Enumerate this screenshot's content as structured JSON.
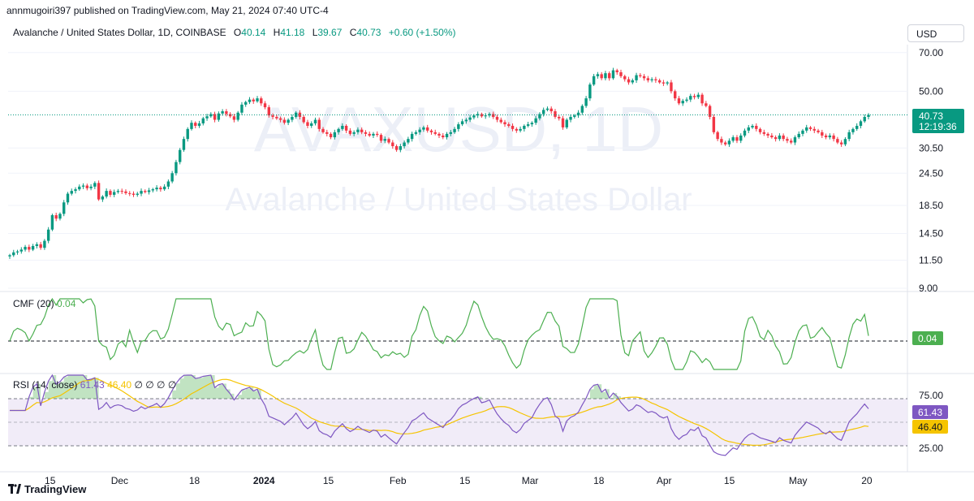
{
  "header": {
    "publisher_line": "annmugoiri397 published on TradingView.com, May 21, 2024 07:40 UTC-4"
  },
  "legend": {
    "symbol": "Avalanche / United States Dollar, 1D, COINBASE",
    "o_label": "O",
    "o": "40.14",
    "h_label": "H",
    "h": "41.18",
    "l_label": "L",
    "l": "39.67",
    "c_label": "C",
    "c": "40.73",
    "change": "+0.60 (+1.50%)"
  },
  "currency_button": "USD",
  "watermark": {
    "ticker": "AVAXUSD, 1D",
    "name": "Avalanche / United States Dollar"
  },
  "price_axis": [
    "70.00",
    "50.00",
    "30.50",
    "24.50",
    "18.50",
    "14.50",
    "11.50",
    "9.00"
  ],
  "last_price_badge": {
    "price": "40.73",
    "countdown": "12:19:36"
  },
  "cmf": {
    "legend_name": "CMF (20)",
    "legend_value": "0.04",
    "badge": "0.04"
  },
  "rsi": {
    "legend_name": "RSI (14, close)",
    "legend_value": "61.43",
    "legend_ma": "46.40",
    "legend_extra": "∅ ∅ ∅ ∅",
    "axis_top": "75.00",
    "axis_bottom": "25.00",
    "badge_rsi": "61.43",
    "badge_ma": "46.40"
  },
  "time_axis": [
    "15",
    "Dec",
    "18",
    "2024",
    "15",
    "Feb",
    "15",
    "Mar",
    "18",
    "Apr",
    "15",
    "May",
    "20"
  ],
  "footer": {
    "brand": "TradingView"
  },
  "colors": {
    "up": "#089981",
    "down": "#f23645",
    "cmf": "#4caf50",
    "rsi": "#7e57c2",
    "rsi_ma": "#f5c400",
    "rsi_band": "#ede7f6"
  },
  "chart_data": {
    "type": "candlestick",
    "title": "Avalanche / United States Dollar, 1D, COINBASE",
    "y_scale": "log",
    "ylim": [
      9,
      75
    ],
    "closes": [
      12.0,
      12.3,
      12.4,
      12.6,
      12.9,
      12.6,
      13.0,
      13.2,
      12.8,
      13.6,
      15.0,
      17.0,
      16.5,
      17.2,
      19.0,
      20.5,
      21.0,
      21.3,
      21.8,
      22.0,
      21.5,
      21.8,
      22.5,
      19.5,
      20.0,
      21.0,
      20.3,
      20.8,
      21.0,
      20.9,
      20.6,
      20.5,
      20.3,
      20.5,
      21.0,
      20.8,
      21.1,
      21.3,
      21.6,
      21.3,
      21.8,
      22.8,
      24.5,
      27.0,
      30.0,
      33.0,
      36.0,
      38.0,
      37.0,
      37.8,
      39.5,
      40.2,
      41.0,
      39.0,
      41.2,
      42.0,
      41.0,
      40.2,
      39.0,
      41.5,
      44.5,
      45.5,
      46.5,
      45.8,
      47.0,
      45.0,
      43.5,
      40.5,
      40.0,
      39.5,
      39.0,
      38.0,
      39.0,
      40.0,
      41.5,
      40.0,
      38.2,
      37.0,
      37.8,
      39.0,
      36.0,
      35.0,
      34.5,
      33.5,
      35.0,
      36.0,
      37.0,
      35.5,
      34.5,
      35.0,
      35.8,
      35.0,
      34.5,
      34.0,
      34.5,
      34.2,
      32.5,
      33.0,
      32.0,
      31.0,
      30.0,
      31.0,
      32.0,
      33.0,
      34.5,
      35.0,
      35.8,
      36.5,
      35.5,
      35.0,
      34.5,
      34.0,
      33.5,
      34.5,
      35.0,
      36.0,
      37.5,
      38.5,
      39.0,
      39.8,
      40.5,
      41.0,
      40.2,
      40.5,
      41.0,
      40.0,
      39.0,
      38.2,
      37.5,
      37.0,
      36.0,
      35.5,
      36.0,
      37.0,
      37.5,
      38.0,
      39.5,
      41.0,
      42.5,
      43.0,
      42.0,
      40.0,
      39.5,
      36.5,
      39.0,
      40.0,
      40.5,
      41.5,
      44.0,
      47.0,
      53.0,
      57.0,
      58.0,
      56.0,
      58.5,
      56.0,
      60.0,
      59.0,
      57.0,
      55.5,
      54.0,
      55.0,
      57.5,
      57.0,
      56.0,
      55.0,
      55.5,
      55.0,
      54.0,
      53.5,
      54.0,
      50.0,
      47.0,
      45.0,
      46.0,
      46.5,
      48.0,
      47.5,
      48.5,
      45.0,
      44.0,
      40.0,
      35.0,
      33.0,
      32.0,
      31.5,
      32.5,
      33.5,
      32.5,
      34.0,
      35.5,
      36.5,
      37.0,
      36.0,
      35.0,
      34.5,
      34.0,
      33.5,
      33.0,
      34.0,
      33.0,
      32.5,
      32.0,
      33.5,
      34.5,
      35.5,
      36.5,
      36.0,
      35.5,
      35.0,
      34.0,
      33.5,
      34.0,
      33.0,
      32.0,
      31.5,
      33.0,
      35.0,
      36.0,
      37.0,
      38.5,
      40.0,
      40.7
    ],
    "cmf_last": 0.04,
    "rsi_last": 61.43,
    "rsi_ma_last": 46.4,
    "rsi_levels": [
      70,
      50,
      30
    ]
  }
}
